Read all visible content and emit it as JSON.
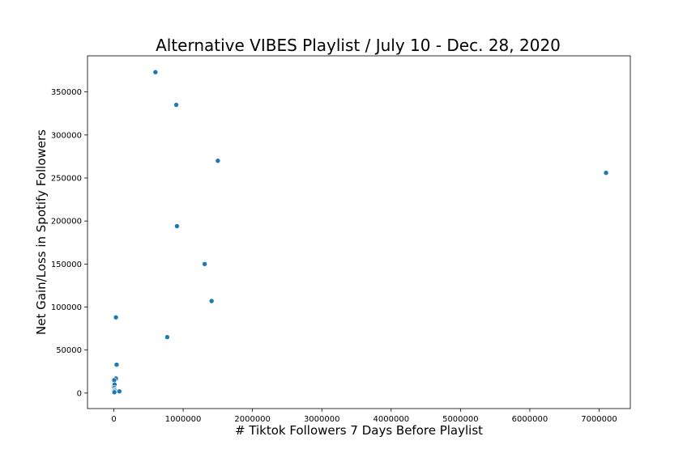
{
  "chart_data": {
    "type": "scatter",
    "title": "Alternative VIBES Playlist / July 10 - Dec. 28, 2020",
    "xlabel": "# Tiktok Followers 7 Days Before Playlist",
    "ylabel": "Net Gain/Loss in Spotify Followers",
    "xlim": [
      -380000,
      7450000
    ],
    "ylim": [
      -18000,
      392000
    ],
    "xticks": [
      0,
      1000000,
      2000000,
      3000000,
      4000000,
      5000000,
      6000000,
      7000000
    ],
    "xtick_labels": [
      "0",
      "1000000",
      "2000000",
      "3000000",
      "4000000",
      "5000000",
      "6000000",
      "7000000"
    ],
    "yticks": [
      0,
      50000,
      100000,
      150000,
      200000,
      250000,
      300000,
      350000
    ],
    "ytick_labels": [
      "0",
      "50000",
      "100000",
      "150000",
      "200000",
      "250000",
      "300000",
      "350000"
    ],
    "grid": false,
    "marker_color": "#1f77b4",
    "points": [
      {
        "x": 600000,
        "y": 373000
      },
      {
        "x": 900000,
        "y": 335000
      },
      {
        "x": 1500000,
        "y": 270000
      },
      {
        "x": 7100000,
        "y": 256000
      },
      {
        "x": 910000,
        "y": 194000
      },
      {
        "x": 1310000,
        "y": 150000
      },
      {
        "x": 1410000,
        "y": 107000
      },
      {
        "x": 30000,
        "y": 88000
      },
      {
        "x": 770000,
        "y": 65000
      },
      {
        "x": 40000,
        "y": 33000
      },
      {
        "x": 30000,
        "y": 17000
      },
      {
        "x": 5000,
        "y": 15000
      },
      {
        "x": 10000,
        "y": 10000
      },
      {
        "x": 5000,
        "y": 6000
      },
      {
        "x": 10000,
        "y": 4000
      },
      {
        "x": 15000,
        "y": 3000
      },
      {
        "x": 5000,
        "y": 2000
      },
      {
        "x": 80000,
        "y": 2000
      },
      {
        "x": 8000,
        "y": 1000
      }
    ]
  }
}
